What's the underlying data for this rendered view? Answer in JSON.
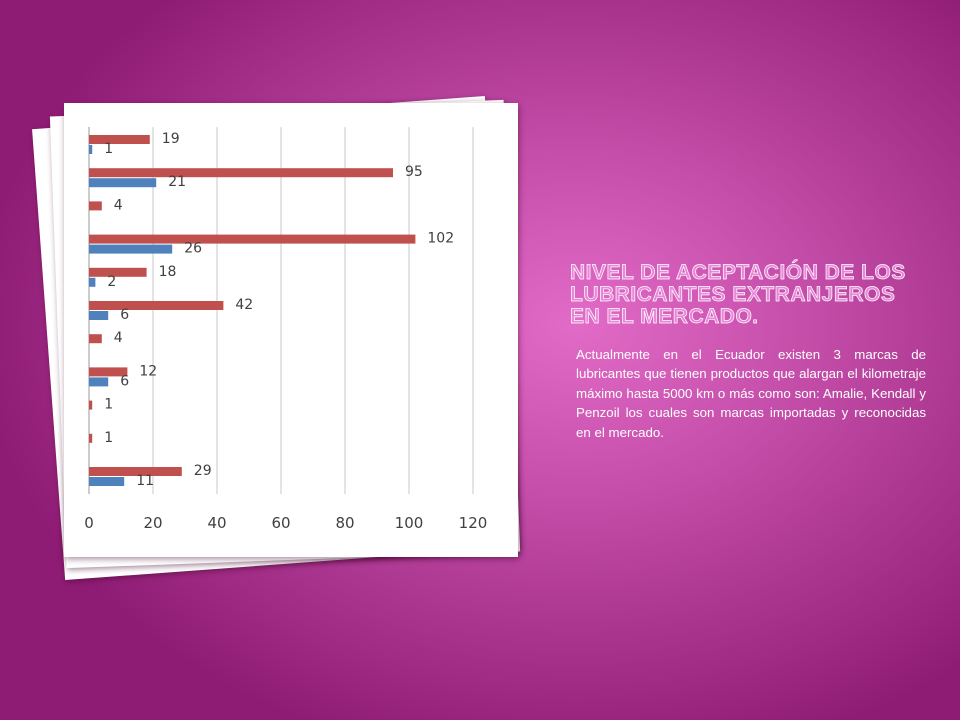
{
  "slide": {
    "title": "Nivel de aceptación de los lubricantes extranjeros en el mercado.",
    "body": "Actualmente en el Ecuador existen 3 marcas de lubricantes que tienen productos que alargan el kilometraje máximo hasta 5000 km o más como son: Amalie, Kendall y Penzoil los cuales son marcas importadas y  reconocidas en el mercado."
  },
  "chart_data": {
    "type": "bar",
    "orientation": "horizontal",
    "title": "",
    "xlabel": "",
    "ylabel": "",
    "xlim": [
      0,
      120
    ],
    "xticks": [
      0,
      20,
      40,
      60,
      80,
      100,
      120
    ],
    "grid": true,
    "legend": "none",
    "categories": [
      "",
      "",
      "",
      "",
      "",
      "",
      "",
      "",
      "",
      "",
      ""
    ],
    "series": [
      {
        "color": "#c0504d",
        "values": [
          19,
          95,
          4,
          102,
          18,
          42,
          4,
          12,
          1,
          1,
          29
        ]
      },
      {
        "color": "#4f81bd",
        "values": [
          1,
          21,
          0,
          26,
          2,
          6,
          0,
          6,
          0,
          0,
          11
        ]
      }
    ]
  }
}
